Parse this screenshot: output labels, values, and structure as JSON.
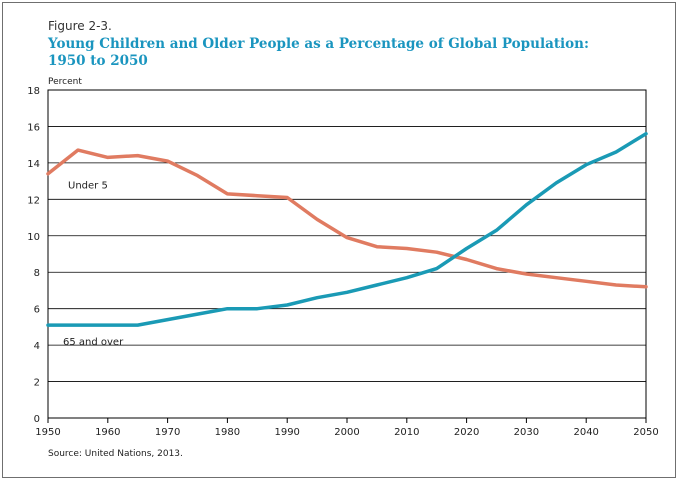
{
  "figure": {
    "label": "Figure 2-3.",
    "title_line1": "Young Children and Older People as a Percentage of Global Population:",
    "title_line2": "1950 to 2050",
    "source": "Source: United Nations, 2013."
  },
  "chart_data": {
    "type": "line",
    "title": "Young Children and Older People as a Percentage of Global Population: 1950 to 2050",
    "ylabel": "Percent",
    "xlabel": "",
    "ylim": [
      0,
      18
    ],
    "xlim": [
      1950,
      2050
    ],
    "yticks": [
      0,
      2,
      4,
      6,
      8,
      10,
      12,
      14,
      16,
      18
    ],
    "xticks": [
      1950,
      1960,
      1970,
      1980,
      1990,
      2000,
      2010,
      2020,
      2030,
      2040,
      2050
    ],
    "grid": true,
    "x": [
      1950,
      1955,
      1960,
      1965,
      1970,
      1975,
      1980,
      1985,
      1990,
      1995,
      2000,
      2005,
      2010,
      2015,
      2020,
      2025,
      2030,
      2035,
      2040,
      2045,
      2050
    ],
    "series": [
      {
        "name": "Under 5",
        "color": "#e07b61",
        "values": [
          13.4,
          14.7,
          14.3,
          14.4,
          14.1,
          13.3,
          12.3,
          12.2,
          12.1,
          10.9,
          9.9,
          9.4,
          9.3,
          9.1,
          8.7,
          8.2,
          7.9,
          7.7,
          7.5,
          7.3,
          7.2
        ]
      },
      {
        "name": "65 and over",
        "color": "#1a9ab5",
        "values": [
          5.1,
          5.1,
          5.1,
          5.1,
          5.4,
          5.7,
          6.0,
          6.0,
          6.2,
          6.6,
          6.9,
          7.3,
          7.7,
          8.2,
          9.3,
          10.3,
          11.7,
          12.9,
          13.9,
          14.6,
          15.6
        ]
      }
    ]
  }
}
